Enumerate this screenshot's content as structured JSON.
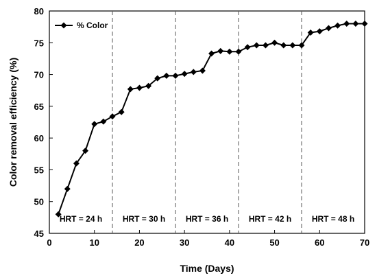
{
  "chart_data": {
    "type": "line",
    "xlabel": "Time (Days)",
    "ylabel": "Color removal efficiency (%)",
    "xlim": [
      0,
      70
    ],
    "ylim": [
      45,
      80
    ],
    "xticks": [
      "0",
      "10",
      "20",
      "30",
      "40",
      "50",
      "60",
      "70"
    ],
    "yticks": [
      "45",
      "50",
      "55",
      "60",
      "65",
      "70",
      "75",
      "80"
    ],
    "grid": false,
    "legend_position": "top-left",
    "series": [
      {
        "name": "% Color",
        "marker": "diamond",
        "color": "#000000",
        "x": [
          2,
          4,
          6,
          8,
          10,
          12,
          14,
          16,
          18,
          20,
          22,
          24,
          26,
          28,
          30,
          32,
          34,
          36,
          38,
          40,
          42,
          44,
          46,
          48,
          50,
          52,
          54,
          56,
          58,
          60,
          62,
          64,
          66,
          68,
          70
        ],
        "y": [
          48,
          52,
          56,
          58,
          62.2,
          62.6,
          63.4,
          64.1,
          67.7,
          67.9,
          68.2,
          69.4,
          69.8,
          69.8,
          70.1,
          70.4,
          70.6,
          73.3,
          73.7,
          73.6,
          73.6,
          74.3,
          74.6,
          74.6,
          75.0,
          74.6,
          74.6,
          74.6,
          76.6,
          76.8,
          77.3,
          77.7,
          78.0,
          78.0,
          78.0
        ]
      }
    ],
    "dividers_x": [
      14,
      28,
      42,
      56
    ],
    "annotations": [
      "HRT = 24 h",
      "HRT = 30 h",
      "HRT = 36 h",
      "HRT = 42 h",
      "HRT = 48 h"
    ]
  }
}
